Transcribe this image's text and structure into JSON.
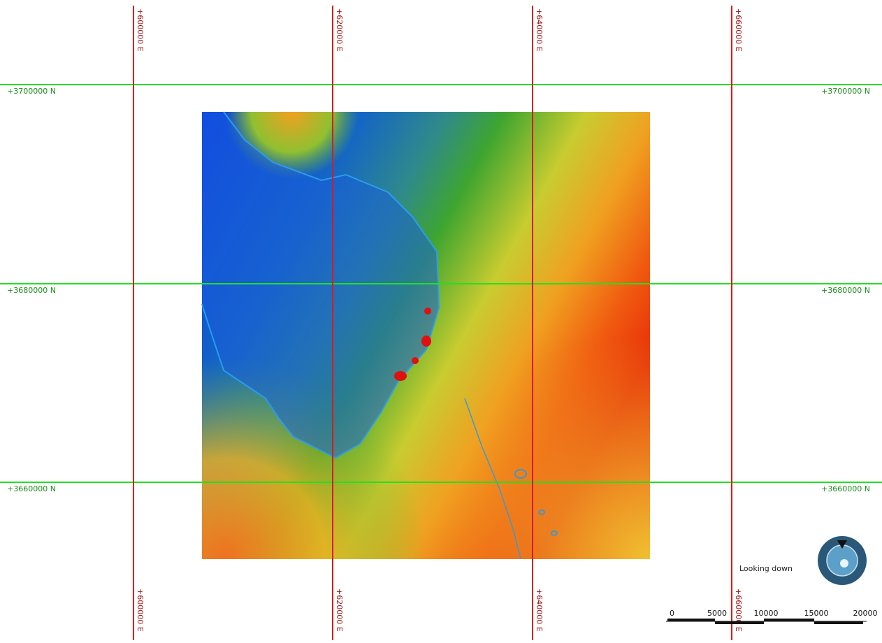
{
  "grid": {
    "eastings": [
      "+600000 E",
      "+620000 E",
      "+640000 E",
      "+660000 E"
    ],
    "northings": [
      "+3700000 N",
      "+3680000 N",
      "+3660000 N"
    ]
  },
  "compass": {
    "label": "Looking down"
  },
  "scale_bar": {
    "labels": [
      "0",
      "5000",
      "10000",
      "15000",
      "20000"
    ]
  }
}
